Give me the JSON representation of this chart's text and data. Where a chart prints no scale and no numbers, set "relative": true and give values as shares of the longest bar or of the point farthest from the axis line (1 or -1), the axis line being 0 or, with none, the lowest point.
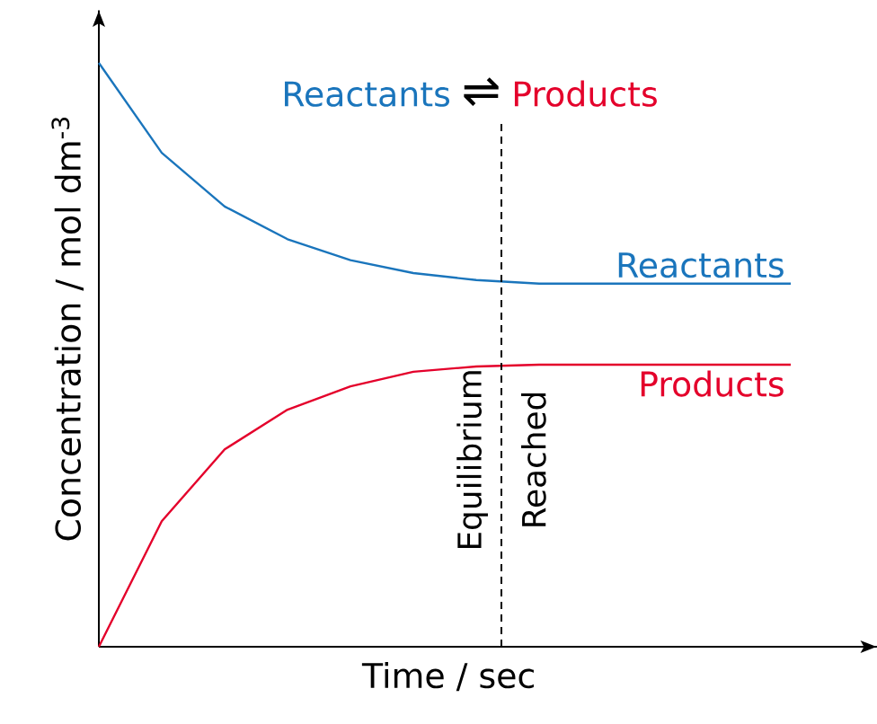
{
  "chart_data": {
    "type": "line",
    "relative": true,
    "xlabel": "Time / sec",
    "ylabel": "Concentration / mol dm$^{-3}$",
    "categories": [
      null,
      null,
      null,
      null,
      null,
      null,
      null,
      null,
      null,
      null,
      null,
      null
    ],
    "series": [
      {
        "name": "Reactants",
        "color": "#1a75bc",
        "values": [
          1,
          0.846,
          0.754,
          0.698,
          0.662,
          0.64,
          0.628,
          0.622,
          0.622,
          0.622,
          0.622,
          0.622
        ]
      },
      {
        "name": "Products",
        "color": "#e4002b",
        "values": [
          0,
          0.215,
          0.338,
          0.406,
          0.446,
          0.471,
          0.48,
          0.483,
          0.483,
          0.483,
          0.483,
          0.483
        ]
      }
    ],
    "annotations": [
      "Reactants",
      "⇌",
      "Products",
      "Equilibrium Reached"
    ],
    "marker": "none",
    "line_style": "solid"
  }
}
